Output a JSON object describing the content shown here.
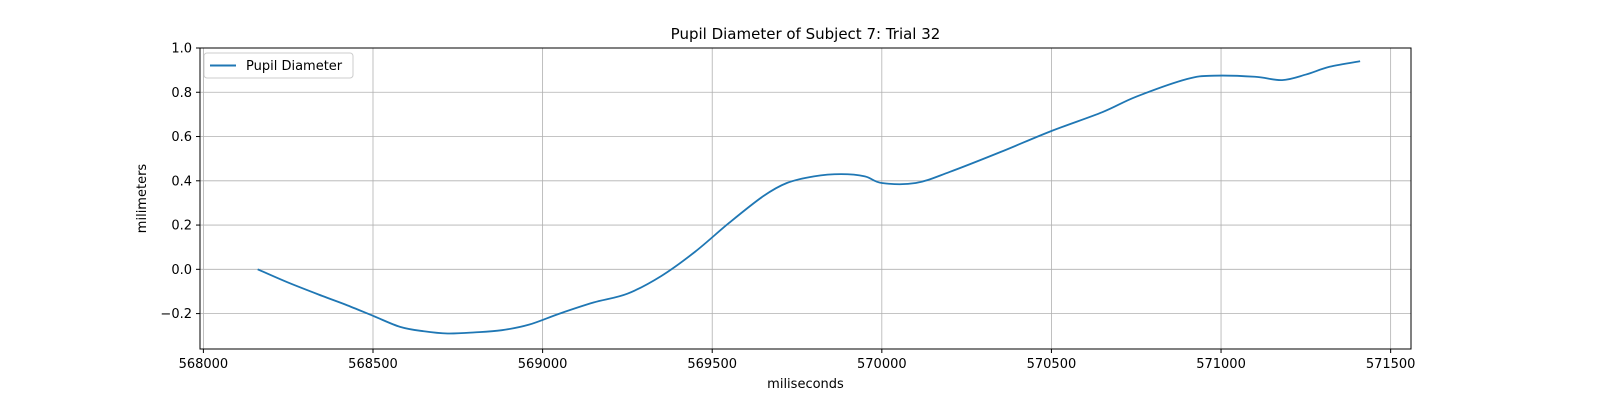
{
  "chart_data": {
    "type": "line",
    "title": "Pupil Diameter of Subject 7: Trial 32",
    "xlabel": "miliseconds",
    "ylabel": "milimeters",
    "xlim": [
      567990,
      571560
    ],
    "ylim": [
      -0.36,
      1.0
    ],
    "xticks": [
      568000,
      568500,
      569000,
      569500,
      570000,
      570500,
      571000,
      571500
    ],
    "xtick_labels": [
      "568000",
      "568500",
      "569000",
      "569500",
      "570000",
      "570500",
      "571000",
      "571500"
    ],
    "yticks": [
      -0.2,
      0.0,
      0.2,
      0.4,
      0.6,
      0.8,
      1.0
    ],
    "ytick_labels": [
      "−0.2",
      "0.0",
      "0.2",
      "0.4",
      "0.6",
      "0.8",
      "1.0"
    ],
    "grid": true,
    "legend_position": "top-left",
    "series": [
      {
        "name": "Pupil Diameter",
        "color": "#1f77b4",
        "x": [
          568160,
          568250,
          568350,
          568420,
          568500,
          568580,
          568650,
          568720,
          568800,
          568880,
          568960,
          569050,
          569150,
          569250,
          569350,
          569450,
          569550,
          569650,
          569720,
          569800,
          569880,
          569950,
          570000,
          570100,
          570200,
          570350,
          570500,
          570650,
          570750,
          570900,
          570980,
          571100,
          571180,
          571250,
          571320,
          571410
        ],
        "y": [
          0.0,
          -0.06,
          -0.12,
          -0.16,
          -0.21,
          -0.26,
          -0.28,
          -0.29,
          -0.285,
          -0.275,
          -0.25,
          -0.2,
          -0.15,
          -0.11,
          -0.03,
          0.08,
          0.21,
          0.33,
          0.39,
          0.42,
          0.43,
          0.42,
          0.39,
          0.39,
          0.44,
          0.53,
          0.625,
          0.71,
          0.78,
          0.86,
          0.875,
          0.87,
          0.855,
          0.88,
          0.915,
          0.94
        ]
      }
    ]
  }
}
